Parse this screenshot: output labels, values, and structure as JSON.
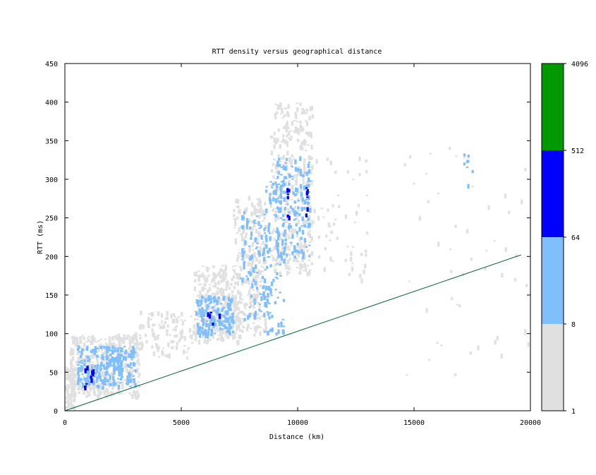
{
  "chart_data": {
    "type": "heatmap",
    "title": "RTT density versus geographical distance",
    "xlabel": "Distance (km)",
    "ylabel": "RTT (ms)",
    "xlim": [
      0,
      20000
    ],
    "ylim": [
      0,
      450
    ],
    "x_ticks": [
      0,
      5000,
      10000,
      15000,
      20000
    ],
    "y_ticks": [
      0,
      50,
      100,
      150,
      200,
      250,
      300,
      350,
      400,
      450
    ],
    "grid": false,
    "colorbar": {
      "position": "right",
      "scale": "log",
      "ticks": [
        1,
        8,
        64,
        512,
        4096
      ],
      "bins": [
        {
          "from": 1,
          "to": 8,
          "color": "#e0e0e0"
        },
        {
          "from": 8,
          "to": 64,
          "color": "#80bfff"
        },
        {
          "from": 64,
          "to": 512,
          "color": "#0000ff"
        },
        {
          "from": 512,
          "to": 4096,
          "color": "#009900"
        }
      ]
    },
    "reference_line": {
      "color": "#006633",
      "points": [
        [
          0,
          0
        ],
        [
          19600,
          202
        ]
      ]
    },
    "clusters": [
      {
        "x": [
          0,
          400
        ],
        "y": [
          5,
          60
        ],
        "density": 1,
        "n": 90
      },
      {
        "x": [
          200,
          3200
        ],
        "y": [
          20,
          100
        ],
        "density": 1,
        "n": 420
      },
      {
        "x": [
          500,
          3000
        ],
        "y": [
          30,
          85
        ],
        "density": 8,
        "n": 240
      },
      {
        "x": [
          800,
          1200
        ],
        "y": [
          30,
          60
        ],
        "density": 64,
        "n": 10
      },
      {
        "x": [
          1900,
          2400
        ],
        "y": [
          55,
          75
        ],
        "density": 8,
        "n": 25
      },
      {
        "x": [
          3000,
          5500
        ],
        "y": [
          70,
          130
        ],
        "density": 1,
        "n": 120
      },
      {
        "x": [
          5500,
          7500
        ],
        "y": [
          90,
          190
        ],
        "density": 1,
        "n": 340
      },
      {
        "x": [
          5600,
          7200
        ],
        "y": [
          100,
          150
        ],
        "density": 8,
        "n": 160
      },
      {
        "x": [
          6000,
          6900
        ],
        "y": [
          108,
          130
        ],
        "density": 64,
        "n": 6
      },
      {
        "x": [
          7200,
          8600
        ],
        "y": [
          100,
          280
        ],
        "density": 1,
        "n": 260
      },
      {
        "x": [
          7500,
          8800
        ],
        "y": [
          120,
          260
        ],
        "density": 8,
        "n": 110
      },
      {
        "x": [
          8500,
          9400
        ],
        "y": [
          100,
          320
        ],
        "density": 8,
        "n": 90
      },
      {
        "x": [
          8800,
          10600
        ],
        "y": [
          180,
          400
        ],
        "density": 1,
        "n": 380
      },
      {
        "x": [
          9000,
          10500
        ],
        "y": [
          200,
          330
        ],
        "density": 8,
        "n": 170
      },
      {
        "x": [
          9500,
          9600
        ],
        "y": [
          250,
          290
        ],
        "density": 64,
        "n": 7
      },
      {
        "x": [
          10300,
          10400
        ],
        "y": [
          250,
          290
        ],
        "density": 64,
        "n": 7
      },
      {
        "x": [
          10500,
          13000
        ],
        "y": [
          170,
          330
        ],
        "density": 1,
        "n": 60
      },
      {
        "x": [
          14500,
          20000
        ],
        "y": [
          40,
          360
        ],
        "density": 1,
        "n": 50
      },
      {
        "x": [
          17000,
          17500
        ],
        "y": [
          290,
          340
        ],
        "density": 8,
        "n": 8
      }
    ]
  }
}
